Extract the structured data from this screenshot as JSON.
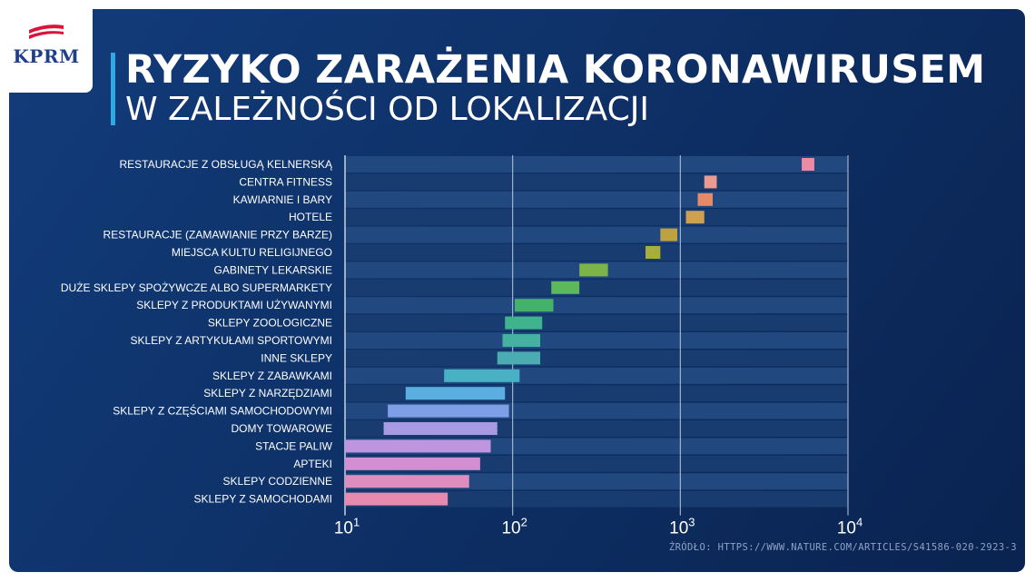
{
  "logo": {
    "text": "KPRM"
  },
  "header": {
    "title": "RYZYKO ZARAŻENIA KORONAWIRUSEM",
    "subtitle": "W ZALEŻNOŚCI OD LOKALIZACJI"
  },
  "source": "ŹRÓDŁO: HTTPS://WWW.NATURE.COM/ARTICLES/S41586-020-2923-3",
  "colors": {
    "background": "#0e3168",
    "accent_bar": "#2fa8e6",
    "flag_red": "#dc143c"
  },
  "chart_data": {
    "type": "bar",
    "orientation": "horizontal",
    "x_scale": "log",
    "xlim": [
      10,
      10000
    ],
    "x_ticks": [
      {
        "value": 10,
        "base": "10",
        "exp": "1"
      },
      {
        "value": 100,
        "base": "10",
        "exp": "2"
      },
      {
        "value": 1000,
        "base": "10",
        "exp": "3"
      },
      {
        "value": 10000,
        "base": "10",
        "exp": "4"
      }
    ],
    "grid": true,
    "series": [
      {
        "label": "RESTAURACJE Z OBSŁUGĄ KELNERSKĄ",
        "low": 5300,
        "high": 6300,
        "color": "#ec8aa2"
      },
      {
        "label": "CENTRA FITNESS",
        "low": 1390,
        "high": 1650,
        "color": "#eb9a92"
      },
      {
        "label": "KAWIARNIE I BARY",
        "low": 1270,
        "high": 1560,
        "color": "#e58a66"
      },
      {
        "label": "HOTELE",
        "low": 1080,
        "high": 1390,
        "color": "#cfa050"
      },
      {
        "label": "RESTAURACJE (ZAMAWIANIE PRZY BARZE)",
        "low": 760,
        "high": 960,
        "color": "#bca242"
      },
      {
        "label": "MIEJSCA KULTU RELIGIJNEGO",
        "low": 620,
        "high": 760,
        "color": "#a8ae3e"
      },
      {
        "label": "GABINETY LEKARSKIE",
        "low": 250,
        "high": 370,
        "color": "#7cb448"
      },
      {
        "label": "DUŻE SKLEPY SPOŻYWCZE ALBO SUPERMARKETY",
        "low": 170,
        "high": 250,
        "color": "#5cb85a"
      },
      {
        "label": "SKLEPY Z PRODUKTAMI UŻYWANYMI",
        "low": 103,
        "high": 175,
        "color": "#45b26b"
      },
      {
        "label": "SKLEPY ZOOLOGICZNE",
        "low": 90,
        "high": 150,
        "color": "#3fb38d"
      },
      {
        "label": "SKLEPY Z ARTYKUŁAMI SPORTOWYMI",
        "low": 87,
        "high": 146,
        "color": "#43b2a1"
      },
      {
        "label": "INNE SKLEPY",
        "low": 81,
        "high": 146,
        "color": "#4bacb1"
      },
      {
        "label": "SKLEPY Z ZABAWKAMI",
        "low": 39,
        "high": 110,
        "color": "#49b1c4"
      },
      {
        "label": "SKLEPY Z NARZĘDZIAMI",
        "low": 23,
        "high": 90,
        "color": "#5aaee0"
      },
      {
        "label": "SKLEPY Z CZĘŚCIAMI SAMOCHODOWYMI",
        "low": 18,
        "high": 95,
        "color": "#7e9ee6"
      },
      {
        "label": "DOMY TOWAROWE",
        "low": 17,
        "high": 81,
        "color": "#a89ae2"
      },
      {
        "label": "STACJE PALIW",
        "low": 10,
        "high": 74,
        "color": "#c095e0"
      },
      {
        "label": "APTEKI",
        "low": 10,
        "high": 64,
        "color": "#d38fd2"
      },
      {
        "label": "SKLEPY CODZIENNE",
        "low": 10,
        "high": 55,
        "color": "#de8ebe"
      },
      {
        "label": "SKLEPY Z SAMOCHODAMI",
        "low": 10,
        "high": 41,
        "color": "#e889b0"
      }
    ]
  }
}
